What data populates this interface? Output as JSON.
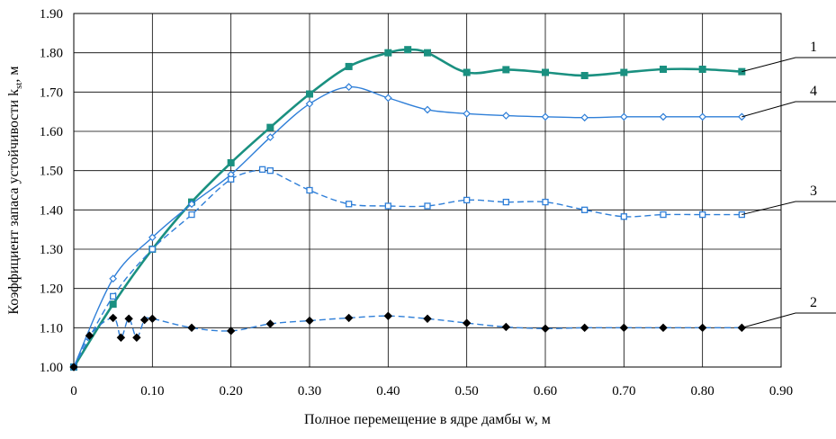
{
  "chart_data": {
    "type": "line",
    "xlabel": "Полное перемещение в ядре дамбы w, м",
    "ylabel_main": "Коэффициент запаса устойчивости k",
    "ylabel_sub": "st",
    "ylabel_unit": ", м",
    "xlim": [
      0,
      0.9
    ],
    "ylim": [
      1.0,
      1.9
    ],
    "x_ticks": [
      "0",
      "0.10",
      "0.20",
      "0.30",
      "0.40",
      "0.50",
      "0.60",
      "0.70",
      "0.80",
      "0.90"
    ],
    "x_tick_values": [
      0,
      0.1,
      0.2,
      0.3,
      0.4,
      0.5,
      0.6,
      0.7,
      0.8,
      0.9
    ],
    "y_ticks": [
      "1.00",
      "1.10",
      "1.20",
      "1.30",
      "1.40",
      "1.50",
      "1.60",
      "1.70",
      "1.80",
      "1.90"
    ],
    "y_tick_values": [
      1.0,
      1.1,
      1.2,
      1.3,
      1.4,
      1.5,
      1.6,
      1.7,
      1.8,
      1.9
    ],
    "grid": true,
    "series": [
      {
        "name": "1",
        "color": "#1a9080",
        "dash": "solid",
        "marker": "square-filled",
        "x": [
          0,
          0.05,
          0.1,
          0.15,
          0.2,
          0.25,
          0.3,
          0.35,
          0.4,
          0.425,
          0.45,
          0.5,
          0.55,
          0.6,
          0.65,
          0.7,
          0.75,
          0.8,
          0.85
        ],
        "y": [
          1.0,
          1.16,
          1.3,
          1.42,
          1.52,
          1.61,
          1.695,
          1.765,
          1.8,
          1.808,
          1.8,
          1.75,
          1.757,
          1.75,
          1.742,
          1.75,
          1.758,
          1.758,
          1.752
        ]
      },
      {
        "name": "4",
        "color": "#2f7fd8",
        "dash": "solid",
        "marker": "diamond-open",
        "x": [
          0,
          0.05,
          0.1,
          0.15,
          0.2,
          0.25,
          0.3,
          0.35,
          0.4,
          0.45,
          0.5,
          0.55,
          0.6,
          0.65,
          0.7,
          0.75,
          0.8,
          0.85
        ],
        "y": [
          1.0,
          1.225,
          1.33,
          1.415,
          1.49,
          1.585,
          1.67,
          1.713,
          1.685,
          1.655,
          1.645,
          1.64,
          1.637,
          1.635,
          1.637,
          1.637,
          1.637,
          1.637
        ]
      },
      {
        "name": "3",
        "color": "#2f7fd8",
        "dash": "dashed",
        "marker": "square-open",
        "x": [
          0,
          0.05,
          0.1,
          0.15,
          0.2,
          0.24,
          0.25,
          0.3,
          0.35,
          0.4,
          0.45,
          0.5,
          0.55,
          0.6,
          0.65,
          0.7,
          0.75,
          0.8,
          0.85
        ],
        "y": [
          1.0,
          1.18,
          1.3,
          1.388,
          1.478,
          1.503,
          1.5,
          1.45,
          1.415,
          1.41,
          1.41,
          1.425,
          1.42,
          1.42,
          1.4,
          1.383,
          1.388,
          1.388,
          1.388
        ]
      },
      {
        "name": "2",
        "color": "#2f7fd8",
        "dash": "dashed",
        "marker": "diamond-filled",
        "x": [
          0,
          0.02,
          0.05,
          0.06,
          0.07,
          0.08,
          0.09,
          0.1,
          0.15,
          0.2,
          0.25,
          0.3,
          0.35,
          0.4,
          0.45,
          0.5,
          0.55,
          0.6,
          0.65,
          0.7,
          0.75,
          0.8,
          0.85
        ],
        "y": [
          1.0,
          1.08,
          1.125,
          1.075,
          1.123,
          1.075,
          1.12,
          1.123,
          1.1,
          1.092,
          1.11,
          1.118,
          1.125,
          1.13,
          1.123,
          1.112,
          1.102,
          1.098,
          1.1,
          1.1,
          1.1,
          1.1,
          1.1
        ]
      }
    ]
  }
}
